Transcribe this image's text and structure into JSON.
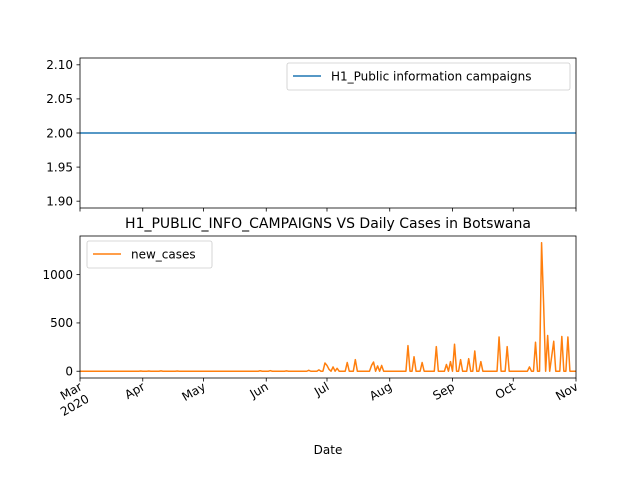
{
  "chart_data": [
    {
      "type": "line",
      "title": "",
      "xlabel": "",
      "ylabel": "",
      "xlim": [
        "2020-03-01",
        "2020-11-01"
      ],
      "ylim": [
        1.89,
        2.11
      ],
      "yticks": [
        1.9,
        1.95,
        2.0,
        2.05,
        2.1
      ],
      "ytick_labels": [
        "1.90",
        "1.95",
        "2.00",
        "2.05",
        "2.10"
      ],
      "legend_placement": "top-right",
      "series": [
        {
          "name": "H1_Public information campaigns",
          "color": "#1f77b4",
          "x": [
            "2020-03-01",
            "2020-11-01"
          ],
          "y": [
            2.0,
            2.0
          ]
        }
      ]
    },
    {
      "type": "line",
      "title": "H1_PUBLIC_INFO_CAMPAIGNS VS Daily Cases in Botswana",
      "xlabel": "Date",
      "ylabel": "",
      "xlim": [
        "2020-03-01",
        "2020-11-01"
      ],
      "ylim": [
        -70,
        1400
      ],
      "yticks": [
        0,
        500,
        1000
      ],
      "ytick_labels": [
        "0",
        "500",
        "1000"
      ],
      "xticks": [
        "2020-03-01",
        "2020-04-01",
        "2020-05-01",
        "2020-06-01",
        "2020-07-01",
        "2020-08-01",
        "2020-09-01",
        "2020-10-01",
        "2020-11-01"
      ],
      "xtick_labels": [
        "Mar\n2020",
        "Apr",
        "May",
        "Jun",
        "Jul",
        "Aug",
        "Sep",
        "Oct",
        "Nov"
      ],
      "legend_placement": "top-left",
      "series": [
        {
          "name": "new_cases",
          "color": "#ff7f0e",
          "points": [
            [
              "2020-03-01",
              0
            ],
            [
              "2020-03-30",
              0
            ],
            [
              "2020-03-31",
              3
            ],
            [
              "2020-04-01",
              0
            ],
            [
              "2020-04-03",
              0
            ],
            [
              "2020-04-04",
              2
            ],
            [
              "2020-04-05",
              0
            ],
            [
              "2020-04-09",
              0
            ],
            [
              "2020-04-10",
              4
            ],
            [
              "2020-04-11",
              0
            ],
            [
              "2020-04-17",
              0
            ],
            [
              "2020-04-18",
              3
            ],
            [
              "2020-04-19",
              0
            ],
            [
              "2020-05-28",
              0
            ],
            [
              "2020-05-29",
              5
            ],
            [
              "2020-05-30",
              0
            ],
            [
              "2020-06-02",
              0
            ],
            [
              "2020-06-03",
              6
            ],
            [
              "2020-06-04",
              0
            ],
            [
              "2020-06-10",
              0
            ],
            [
              "2020-06-11",
              4
            ],
            [
              "2020-06-12",
              0
            ],
            [
              "2020-06-21",
              0
            ],
            [
              "2020-06-22",
              10
            ],
            [
              "2020-06-23",
              0
            ],
            [
              "2020-06-26",
              0
            ],
            [
              "2020-06-27",
              14
            ],
            [
              "2020-06-28",
              0
            ],
            [
              "2020-06-29",
              0
            ],
            [
              "2020-06-30",
              85
            ],
            [
              "2020-07-01",
              60
            ],
            [
              "2020-07-02",
              20
            ],
            [
              "2020-07-03",
              0
            ],
            [
              "2020-07-04",
              45
            ],
            [
              "2020-07-05",
              0
            ],
            [
              "2020-07-06",
              30
            ],
            [
              "2020-07-07",
              0
            ],
            [
              "2020-07-10",
              0
            ],
            [
              "2020-07-11",
              90
            ],
            [
              "2020-07-12",
              0
            ],
            [
              "2020-07-14",
              0
            ],
            [
              "2020-07-15",
              120
            ],
            [
              "2020-07-16",
              0
            ],
            [
              "2020-07-22",
              0
            ],
            [
              "2020-07-23",
              60
            ],
            [
              "2020-07-24",
              95
            ],
            [
              "2020-07-25",
              0
            ],
            [
              "2020-07-26",
              55
            ],
            [
              "2020-07-27",
              0
            ],
            [
              "2020-07-28",
              60
            ],
            [
              "2020-07-29",
              0
            ],
            [
              "2020-08-09",
              0
            ],
            [
              "2020-08-10",
              265
            ],
            [
              "2020-08-11",
              0
            ],
            [
              "2020-08-12",
              0
            ],
            [
              "2020-08-13",
              150
            ],
            [
              "2020-08-14",
              0
            ],
            [
              "2020-08-16",
              0
            ],
            [
              "2020-08-17",
              90
            ],
            [
              "2020-08-18",
              0
            ],
            [
              "2020-08-23",
              0
            ],
            [
              "2020-08-24",
              255
            ],
            [
              "2020-08-25",
              0
            ],
            [
              "2020-08-28",
              0
            ],
            [
              "2020-08-29",
              70
            ],
            [
              "2020-08-30",
              0
            ],
            [
              "2020-08-31",
              100
            ],
            [
              "2020-09-01",
              0
            ],
            [
              "2020-09-02",
              280
            ],
            [
              "2020-09-03",
              0
            ],
            [
              "2020-09-04",
              0
            ],
            [
              "2020-09-05",
              120
            ],
            [
              "2020-09-06",
              0
            ],
            [
              "2020-09-08",
              0
            ],
            [
              "2020-09-09",
              130
            ],
            [
              "2020-09-10",
              0
            ],
            [
              "2020-09-11",
              0
            ],
            [
              "2020-09-12",
              210
            ],
            [
              "2020-09-13",
              0
            ],
            [
              "2020-09-14",
              0
            ],
            [
              "2020-09-15",
              100
            ],
            [
              "2020-09-16",
              0
            ],
            [
              "2020-09-23",
              0
            ],
            [
              "2020-09-24",
              355
            ],
            [
              "2020-09-25",
              0
            ],
            [
              "2020-09-27",
              0
            ],
            [
              "2020-09-28",
              255
            ],
            [
              "2020-09-29",
              0
            ],
            [
              "2020-10-08",
              0
            ],
            [
              "2020-10-09",
              45
            ],
            [
              "2020-10-10",
              0
            ],
            [
              "2020-10-11",
              0
            ],
            [
              "2020-10-12",
              300
            ],
            [
              "2020-10-13",
              0
            ],
            [
              "2020-10-14",
              0
            ],
            [
              "2020-10-15",
              1330
            ],
            [
              "2020-10-16",
              700
            ],
            [
              "2020-10-17",
              0
            ],
            [
              "2020-10-18",
              370
            ],
            [
              "2020-10-19",
              0
            ],
            [
              "2020-10-21",
              310
            ],
            [
              "2020-10-22",
              0
            ],
            [
              "2020-10-24",
              0
            ],
            [
              "2020-10-25",
              360
            ],
            [
              "2020-10-26",
              0
            ],
            [
              "2020-10-27",
              0
            ],
            [
              "2020-10-28",
              355
            ],
            [
              "2020-10-29",
              0
            ],
            [
              "2020-11-01",
              0
            ]
          ]
        }
      ]
    }
  ]
}
